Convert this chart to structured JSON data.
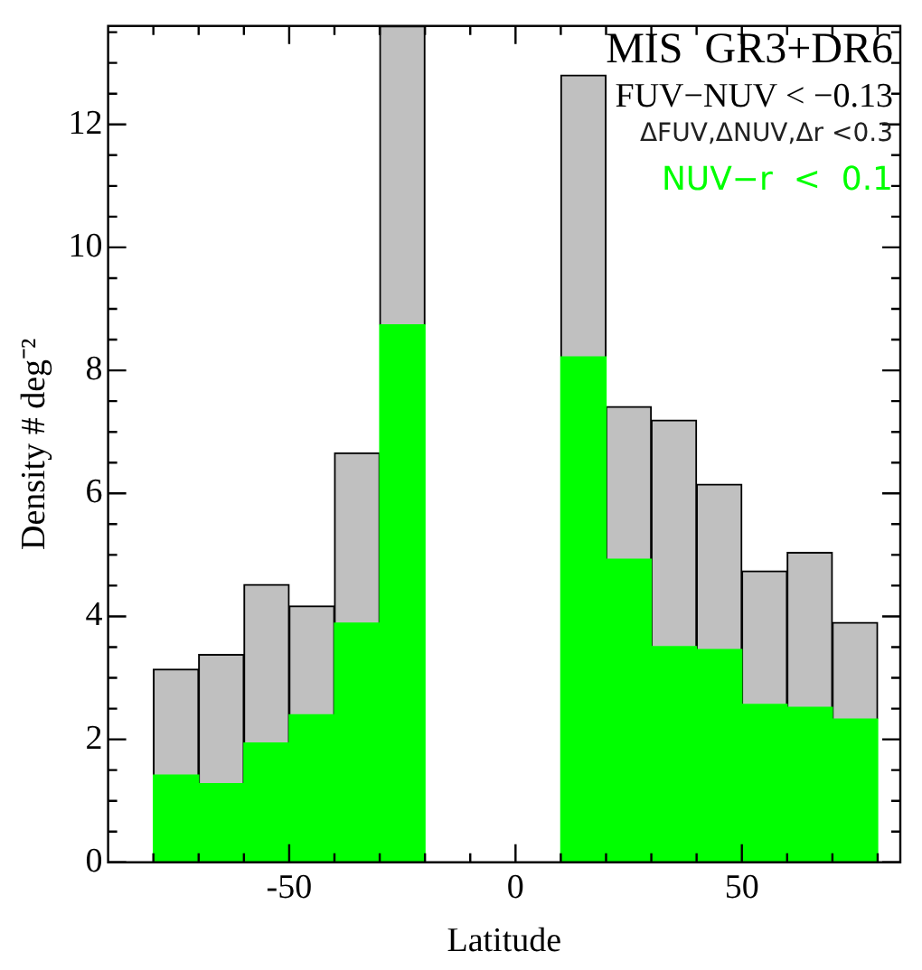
{
  "chart_data": {
    "type": "bar",
    "title": "MIS  GR3+DR6",
    "xlabel": "Latitude",
    "ylabel": "Density # deg⁻²",
    "annotations": [
      "FUV−NUV < −0.13",
      "ΔFUV,ΔNUV,Δr <0.3"
    ],
    "x": [
      -75,
      -65,
      -55,
      -45,
      -35,
      -25,
      -15,
      -5,
      5,
      15,
      25,
      35,
      45,
      55,
      65,
      75
    ],
    "series": [
      {
        "name": "NUV−r  <  0.1",
        "color": "#00ff00",
        "values": [
          1.42,
          1.28,
          1.94,
          2.4,
          3.89,
          8.74,
          null,
          null,
          null,
          8.22,
          4.93,
          3.51,
          3.46,
          2.57,
          2.52,
          2.33
        ]
      },
      {
        "color": "#c0c0c0",
        "values": [
          1.72,
          2.1,
          2.58,
          1.77,
          2.77,
          4.86,
          null,
          null,
          null,
          4.58,
          2.48,
          3.68,
          2.69,
          2.17,
          2.52,
          1.57
        ]
      }
    ],
    "stacked": true,
    "xlim": [
      -90,
      85
    ],
    "ylim": [
      0,
      13.6
    ],
    "xticks": [
      {
        "value": -80,
        "label": null
      },
      {
        "value": -70,
        "label": null
      },
      {
        "value": -60,
        "label": null
      },
      -50,
      {
        "value": -40,
        "label": null
      },
      {
        "value": -30,
        "label": null
      },
      {
        "value": -20,
        "label": null
      },
      {
        "value": -10,
        "label": null
      },
      0,
      {
        "value": 10,
        "label": null
      },
      {
        "value": 20,
        "label": null
      },
      {
        "value": 30,
        "label": null
      },
      {
        "value": 40,
        "label": null
      },
      50,
      {
        "value": 60,
        "label": null
      },
      {
        "value": 70,
        "label": null
      },
      {
        "value": 80,
        "label": null
      }
    ],
    "yticks": [
      0,
      {
        "value": 0.5,
        "label": null
      },
      {
        "value": 1,
        "label": null
      },
      {
        "value": 1.5,
        "label": null
      },
      2,
      {
        "value": 2.5,
        "label": null
      },
      {
        "value": 3,
        "label": null
      },
      {
        "value": 3.5,
        "label": null
      },
      4,
      {
        "value": 4.5,
        "label": null
      },
      {
        "value": 5,
        "label": null
      },
      {
        "value": 5.5,
        "label": null
      },
      6,
      {
        "value": 6.5,
        "label": null
      },
      {
        "value": 7,
        "label": null
      },
      {
        "value": 7.5,
        "label": null
      },
      8,
      {
        "value": 8.5,
        "label": null
      },
      {
        "value": 9,
        "label": null
      },
      {
        "value": 9.5,
        "label": null
      },
      10,
      {
        "value": 10.5,
        "label": null
      },
      {
        "value": 11,
        "label": null
      },
      {
        "value": 11.5,
        "label": null
      },
      12,
      {
        "value": 12.5,
        "label": null
      },
      {
        "value": 13,
        "label": null
      },
      {
        "value": 13.5,
        "label": null
      }
    ],
    "legend": false
  }
}
